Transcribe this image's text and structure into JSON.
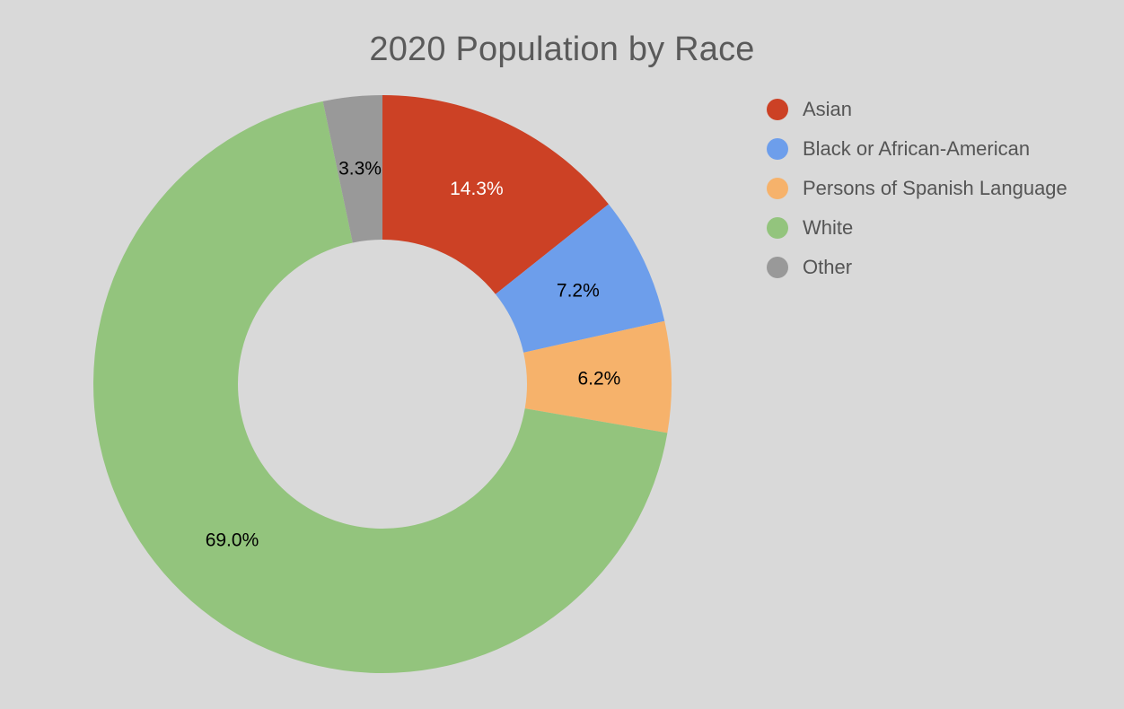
{
  "chart_data": {
    "type": "pie",
    "title": "2020 Population by Race",
    "donut": true,
    "legend_position": "right",
    "categories": [
      "Asian",
      "Black or African-American",
      "Persons of Spanish Language",
      "White",
      "Other"
    ],
    "values": [
      14.3,
      7.2,
      6.2,
      69.0,
      3.3
    ],
    "labels": [
      "14.3%",
      "7.2%",
      "6.2%",
      "69.0%",
      "3.3%"
    ],
    "colors": [
      "#cc4125",
      "#6d9eeb",
      "#f6b26b",
      "#93c47d",
      "#999999"
    ],
    "label_colors": [
      "#ffffff",
      "#000000",
      "#000000",
      "#000000",
      "#000000"
    ]
  }
}
